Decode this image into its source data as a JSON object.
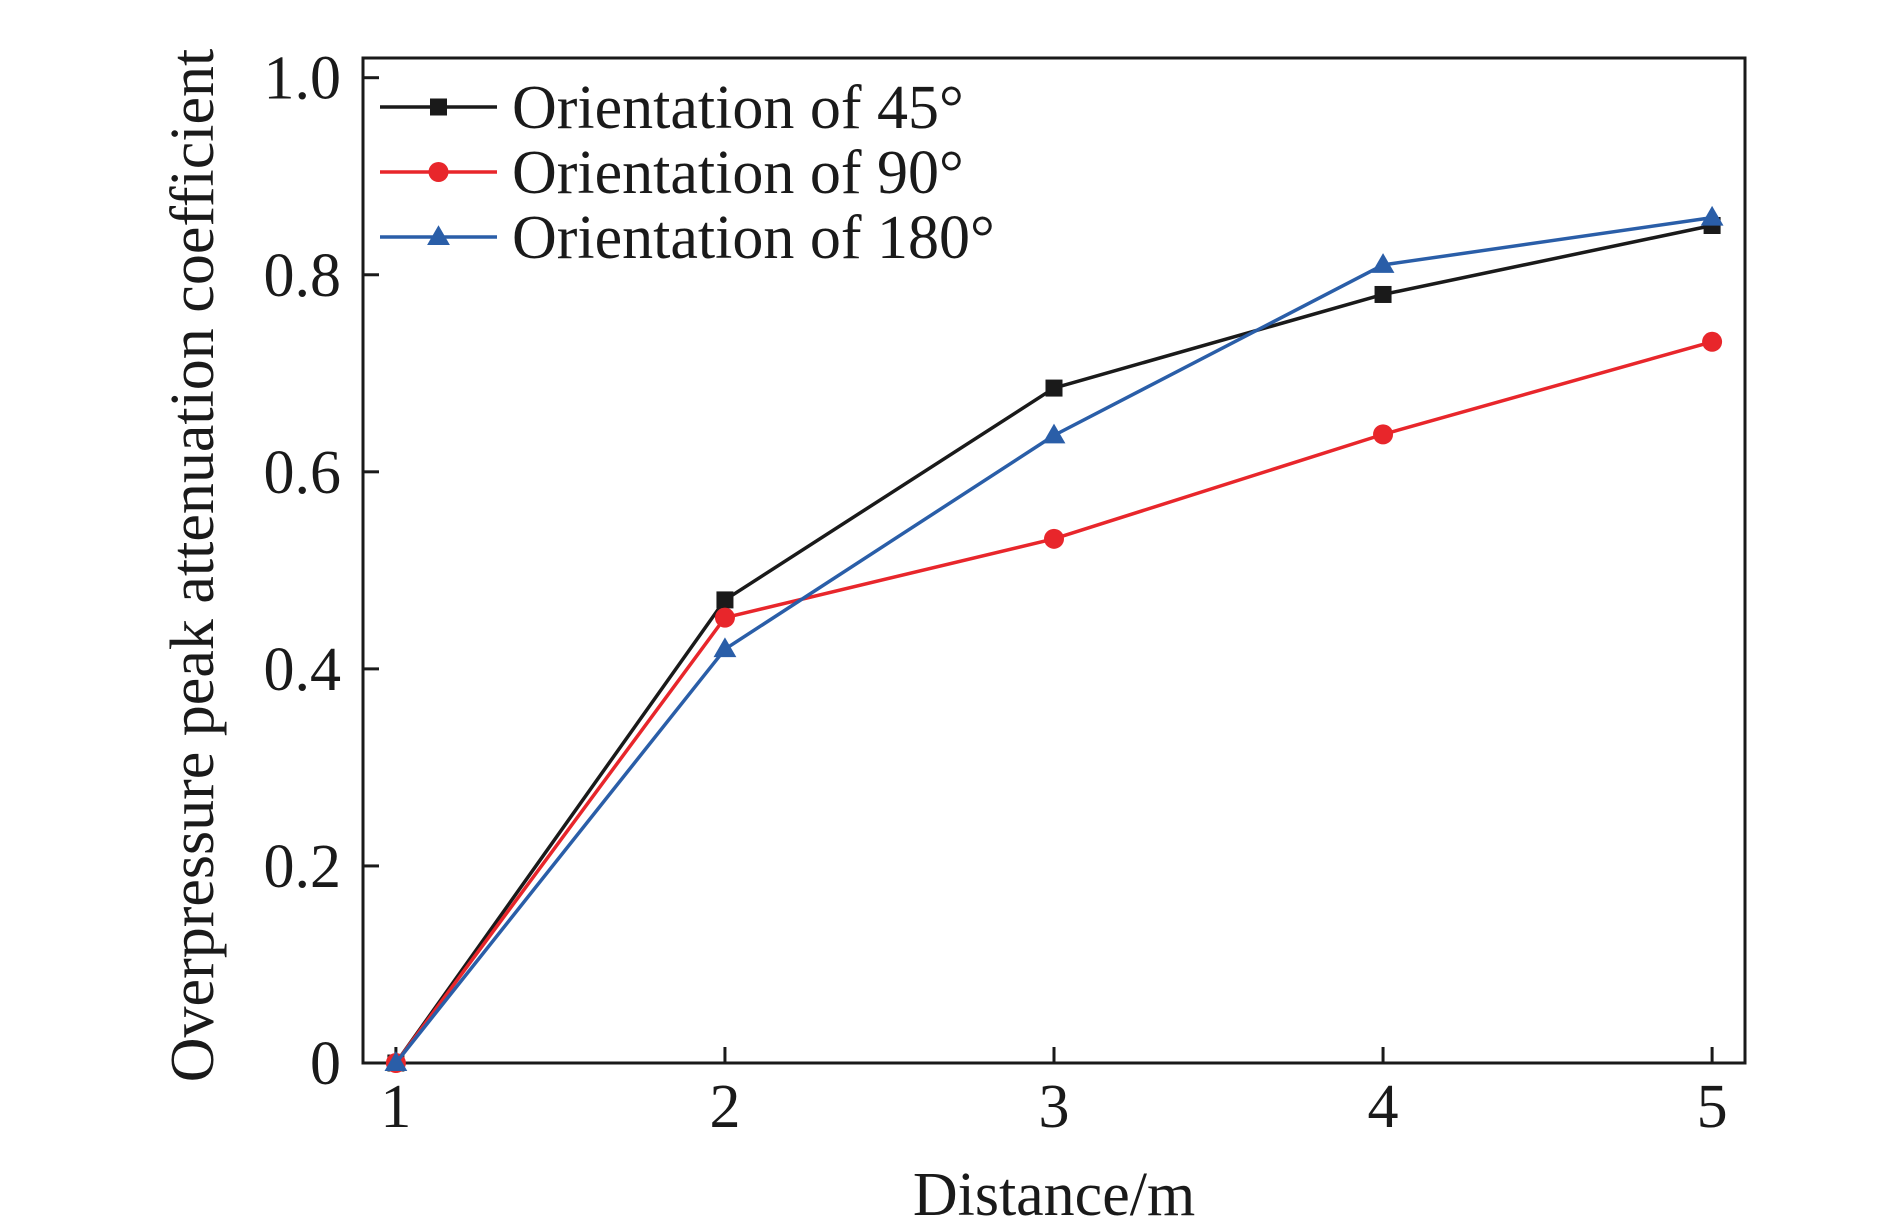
{
  "chart_data": {
    "type": "line",
    "title": "",
    "xlabel": "Distance/m",
    "ylabel": "Overpressure peak attenuation coefficient",
    "xlim": [
      0.9,
      5.1
    ],
    "ylim": [
      0,
      1.02
    ],
    "xticks": [
      1,
      2,
      3,
      4,
      5
    ],
    "xtick_labels": [
      "1",
      "2",
      "3",
      "4",
      "5"
    ],
    "yticks": [
      0,
      0.2,
      0.4,
      0.6,
      0.8,
      1.0
    ],
    "ytick_labels": [
      "0",
      "0.2",
      "0.4",
      "0.6",
      "0.8",
      "1.0"
    ],
    "grid": false,
    "legend_position": "top-left",
    "x": [
      1,
      2,
      3,
      4,
      5
    ],
    "series": [
      {
        "name": "Orientation of 45°",
        "color": "#1a1a1a",
        "marker": "square",
        "values": [
          0.0,
          0.47,
          0.685,
          0.78,
          0.85
        ]
      },
      {
        "name": "Orientation of 90°",
        "color": "#e8262b",
        "marker": "circle",
        "values": [
          0.0,
          0.452,
          0.532,
          0.638,
          0.732
        ]
      },
      {
        "name": "Orientation of 180°",
        "color": "#2a5ea8",
        "marker": "triangle",
        "values": [
          0.0,
          0.42,
          0.637,
          0.81,
          0.858
        ]
      }
    ]
  }
}
